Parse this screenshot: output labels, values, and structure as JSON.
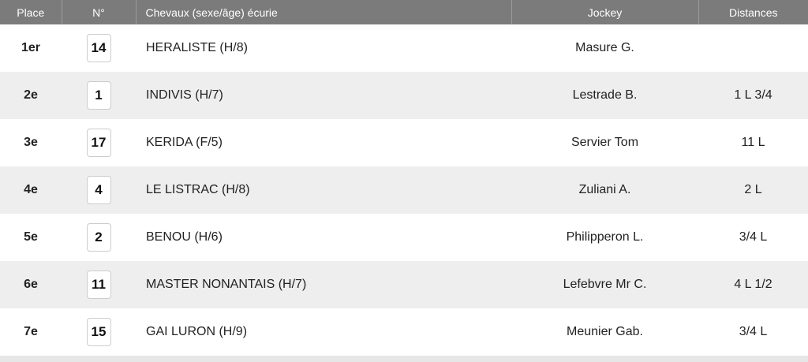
{
  "headers": {
    "place": "Place",
    "num": "N°",
    "horse": "Chevaux (sexe/âge) écurie",
    "jockey": "Jockey",
    "distances": "Distances"
  },
  "rows": [
    {
      "place": "1er",
      "num": "14",
      "horse": "HERALISTE (H/8)",
      "jockey": "Masure G.",
      "distance": ""
    },
    {
      "place": "2e",
      "num": "1",
      "horse": "INDIVIS (H/7)",
      "jockey": "Lestrade B.",
      "distance": "1 L 3/4"
    },
    {
      "place": "3e",
      "num": "17",
      "horse": "KERIDA (F/5)",
      "jockey": "Servier Tom",
      "distance": "11 L"
    },
    {
      "place": "4e",
      "num": "4",
      "horse": "LE LISTRAC (H/8)",
      "jockey": "Zuliani A.",
      "distance": "2 L"
    },
    {
      "place": "5e",
      "num": "2",
      "horse": "BENOU (H/6)",
      "jockey": "Philipperon L.",
      "distance": "3/4 L"
    },
    {
      "place": "6e",
      "num": "11",
      "horse": "MASTER NONANTAIS (H/7)",
      "jockey": "Lefebvre Mr C.",
      "distance": "4 L 1/2"
    },
    {
      "place": "7e",
      "num": "15",
      "horse": "GAI LURON (H/9)",
      "jockey": "Meunier Gab.",
      "distance": "3/4 L"
    }
  ]
}
